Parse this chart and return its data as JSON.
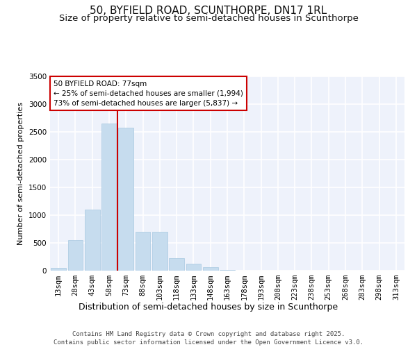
{
  "title1": "50, BYFIELD ROAD, SCUNTHORPE, DN17 1RL",
  "title2": "Size of property relative to semi-detached houses in Scunthorpe",
  "xlabel": "Distribution of semi-detached houses by size in Scunthorpe",
  "ylabel": "Number of semi-detached properties",
  "bin_labels": [
    "13sqm",
    "28sqm",
    "43sqm",
    "58sqm",
    "73sqm",
    "88sqm",
    "103sqm",
    "118sqm",
    "133sqm",
    "148sqm",
    "163sqm",
    "178sqm",
    "193sqm",
    "208sqm",
    "223sqm",
    "238sqm",
    "253sqm",
    "268sqm",
    "283sqm",
    "298sqm",
    "313sqm"
  ],
  "bin_values": [
    50,
    550,
    1100,
    2650,
    2580,
    700,
    700,
    220,
    130,
    60,
    10,
    5,
    0,
    0,
    0,
    0,
    0,
    0,
    0,
    0,
    0
  ],
  "bar_color": "#c6dcee",
  "bar_edge_color": "#a8c8e0",
  "vline_color": "#cc0000",
  "vline_x": 3.5,
  "annotation_text": "50 BYFIELD ROAD: 77sqm\n← 25% of semi-detached houses are smaller (1,994)\n73% of semi-detached houses are larger (5,837) →",
  "annotation_box_color": "#ffffff",
  "annotation_box_edge": "#cc0000",
  "ylim": [
    0,
    3500
  ],
  "yticks": [
    0,
    500,
    1000,
    1500,
    2000,
    2500,
    3000,
    3500
  ],
  "bg_color": "#eef2fb",
  "footer1": "Contains HM Land Registry data © Crown copyright and database right 2025.",
  "footer2": "Contains public sector information licensed under the Open Government Licence v3.0.",
  "title1_fontsize": 11,
  "title2_fontsize": 9.5,
  "xlabel_fontsize": 9,
  "ylabel_fontsize": 8,
  "tick_fontsize": 7.5,
  "footer_fontsize": 6.5
}
